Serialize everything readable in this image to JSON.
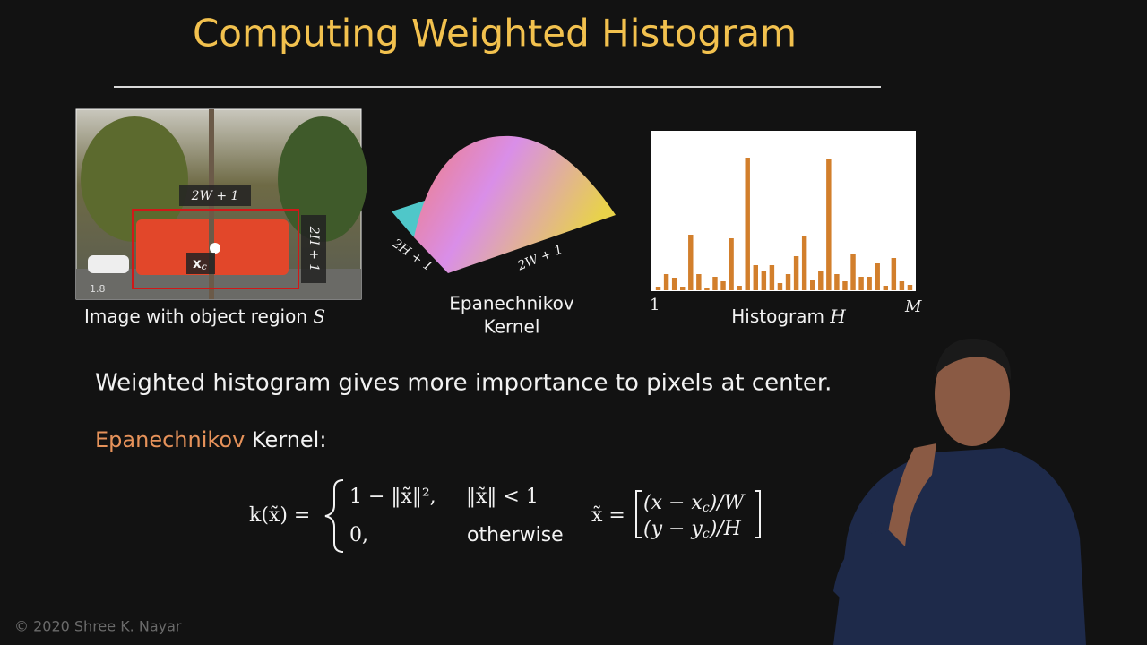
{
  "title": "Computing Weighted Histogram",
  "image_panel": {
    "caption": "Image with object region",
    "caption_symbol": "S",
    "width_label": "2W + 1",
    "height_label": "2H + 1",
    "center_label": "x",
    "center_label_sub": "c",
    "corner_label": "1.8"
  },
  "kernel_panel": {
    "caption_line1": "Epanechnikov",
    "caption_line2": "Kernel",
    "axis_left": "2H + 1",
    "axis_right": "2W + 1"
  },
  "histogram_panel": {
    "caption": "Histogram",
    "caption_symbol": "H",
    "first_label": "1",
    "last_label": "M",
    "color": "#d27f2c",
    "values": [
      4,
      18,
      14,
      4,
      62,
      18,
      3,
      15,
      10,
      58,
      5,
      148,
      28,
      22,
      28,
      8,
      18,
      38,
      60,
      12,
      22,
      147,
      18,
      10,
      40,
      15,
      15,
      30,
      5,
      36,
      10,
      6
    ]
  },
  "statement": "Weighted histogram gives more importance to pixels at center.",
  "kernel_heading": {
    "highlight": "Epanechnikov",
    "rest": "Kernel:"
  },
  "formula": {
    "lhs": "k(x̃) =",
    "case1_expr": "1 − ‖x̃‖², ",
    "case1_cond": "‖x̃‖ < 1",
    "case2_expr": "0,",
    "case2_cond": "otherwise",
    "vec_lhs": "x̃ =",
    "row1_a": "(x − x",
    "row1_sub": "c",
    "row1_b": ")/W",
    "row2_a": "(y − y",
    "row2_sub": "c",
    "row2_b": ")/H"
  },
  "copyright": "© 2020 Shree K. Nayar"
}
